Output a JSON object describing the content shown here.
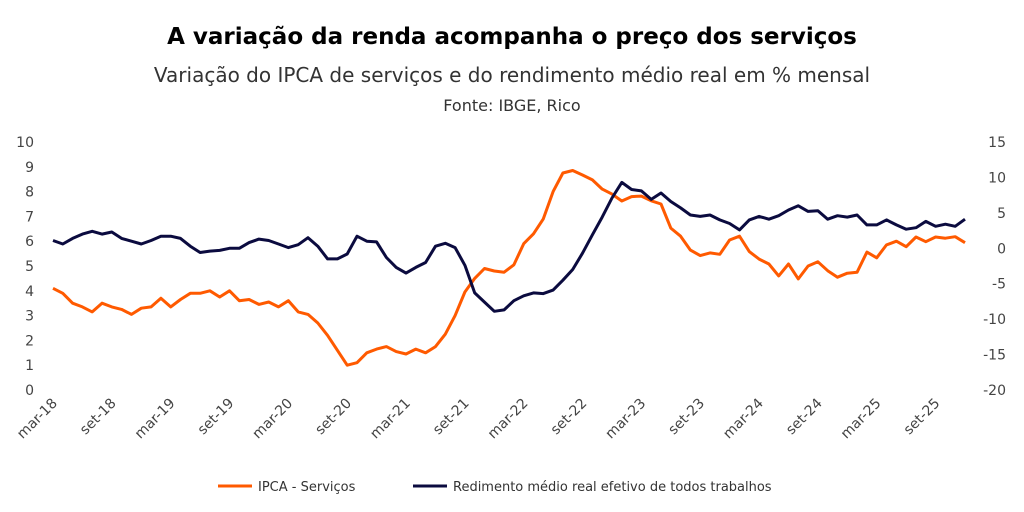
{
  "chart_data": {
    "type": "line",
    "title": "A variação da renda acompanha o preço dos serviços",
    "subtitle": "Variação do IPCA de serviços e do rendimento médio real em % mensal",
    "source": "Fonte: IBGE, Rico",
    "x_tick_labels": [
      "mar-18",
      "set-18",
      "mar-19",
      "set-19",
      "mar-20",
      "set-20",
      "mar-21",
      "set-21",
      "mar-22",
      "set-22",
      "mar-23",
      "set-23",
      "mar-24",
      "set-24",
      "mar-25",
      "set-25"
    ],
    "x_tick_step_months": 6,
    "y_left": {
      "range": [
        0,
        10
      ],
      "ticks": [
        "0",
        "1",
        "2",
        "3",
        "4",
        "5",
        "6",
        "7",
        "8",
        "9",
        "10"
      ]
    },
    "y_right": {
      "range": [
        -20,
        15
      ],
      "ticks": [
        "-20",
        "-15",
        "-10",
        "-5",
        "0",
        "5",
        "10",
        "15"
      ]
    },
    "grid": false,
    "legend_position": "bottom",
    "series": [
      {
        "name": "IPCA - Serviços",
        "axis": "left",
        "color": "#FF5A00",
        "values": [
          4.1,
          3.9,
          3.5,
          3.35,
          3.15,
          3.5,
          3.35,
          3.25,
          3.05,
          3.3,
          3.35,
          3.7,
          3.35,
          3.65,
          3.9,
          3.9,
          4.0,
          3.75,
          4.0,
          3.6,
          3.65,
          3.45,
          3.55,
          3.35,
          3.6,
          3.15,
          3.05,
          2.7,
          2.2,
          1.6,
          1.0,
          1.1,
          1.5,
          1.65,
          1.75,
          1.55,
          1.45,
          1.65,
          1.5,
          1.75,
          2.25,
          3.0,
          3.95,
          4.5,
          4.9,
          4.8,
          4.75,
          5.05,
          5.9,
          6.3,
          6.9,
          8.0,
          8.75,
          8.85,
          8.67,
          8.47,
          8.1,
          7.9,
          7.62,
          7.8,
          7.82,
          7.63,
          7.5,
          6.53,
          6.2,
          5.64,
          5.42,
          5.53,
          5.47,
          6.05,
          6.2,
          5.58,
          5.28,
          5.08,
          4.6,
          5.08,
          4.48,
          5.0,
          5.17,
          4.81,
          4.55,
          4.71,
          4.75,
          5.56,
          5.33,
          5.85,
          6.0,
          5.78,
          6.17,
          5.98,
          6.17,
          6.12,
          6.18,
          5.94
        ]
      },
      {
        "name": "Redimento médio real efetivo de todos trabalhos",
        "axis": "right",
        "color": "#0B0B3F",
        "values": [
          1.1,
          0.6,
          1.4,
          2.0,
          2.4,
          2.0,
          2.3,
          1.4,
          1.0,
          0.6,
          1.1,
          1.7,
          1.7,
          1.4,
          0.3,
          -0.6,
          -0.4,
          -0.3,
          0.0,
          0.0,
          0.8,
          1.3,
          1.1,
          0.6,
          0.1,
          0.5,
          1.5,
          0.3,
          -1.5,
          -1.5,
          -0.8,
          1.7,
          1.0,
          0.9,
          -1.3,
          -2.7,
          -3.5,
          -2.7,
          -2.0,
          0.3,
          0.7,
          0.1,
          -2.4,
          -6.3,
          -7.6,
          -8.9,
          -8.7,
          -7.4,
          -6.7,
          -6.3,
          -6.4,
          -5.9,
          -4.5,
          -3.0,
          -0.7,
          1.9,
          4.4,
          7.1,
          9.3,
          8.3,
          8.1,
          6.9,
          7.8,
          6.6,
          5.7,
          4.7,
          4.5,
          4.7,
          4.0,
          3.5,
          2.6,
          4.0,
          4.5,
          4.1,
          4.6,
          5.4,
          6.0,
          5.2,
          5.3,
          4.1,
          4.6,
          4.4,
          4.7,
          3.3,
          3.3,
          4.0,
          3.3,
          2.7,
          2.9,
          3.8,
          3.1,
          3.4,
          3.1,
          4.1
        ]
      }
    ]
  }
}
